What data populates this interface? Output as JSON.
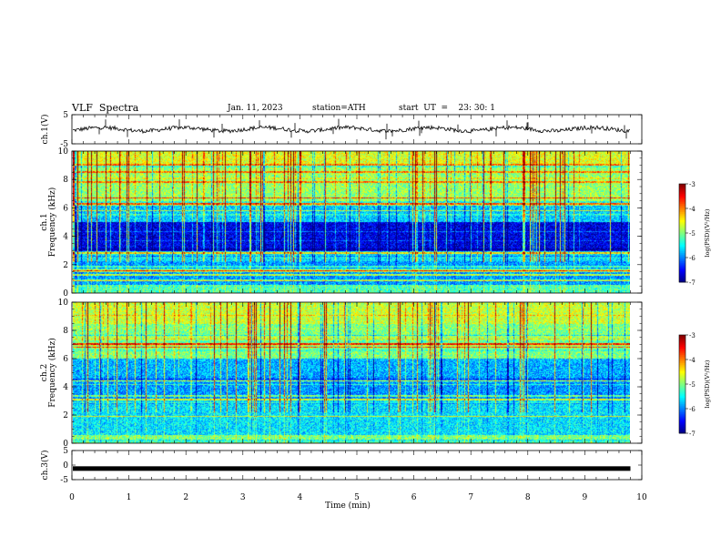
{
  "header": {
    "title": "VLF  Spectra",
    "date": "Jan. 11, 2023",
    "station": "station=ATH",
    "start": "start  UT  =    23: 30: 1"
  },
  "chart_data": [
    {
      "type": "line",
      "name": "ch1-waveform",
      "ylabel": "ch.1(V)",
      "ylim": [
        -5,
        5
      ],
      "yticks": [
        "5",
        "-5"
      ],
      "xlim": [
        0,
        10
      ],
      "baseline": 0
    },
    {
      "type": "heatmap",
      "name": "ch1-spectrogram",
      "ylabel": "ch.1\nFrequency  (kHz)",
      "ylabel_lines": [
        "ch.1",
        "Frequency  (kHz)"
      ],
      "ylim": [
        0,
        10
      ],
      "yticks": [
        "0",
        "2",
        "4",
        "6",
        "8",
        "10"
      ],
      "xlim": [
        0,
        10
      ],
      "data_end_min": 9.8,
      "colorbar": {
        "label": "log(PSD)(V²/Hz)",
        "range": [
          -7,
          -3
        ],
        "ticks": [
          "-3",
          "-4",
          "-5",
          "-6",
          "-7"
        ]
      }
    },
    {
      "type": "heatmap",
      "name": "ch2-spectrogram",
      "ylabel": "ch.2\nFrequency  (kHz)",
      "ylabel_lines": [
        "ch.2",
        "Frequency  (kHz)"
      ],
      "ylim": [
        0,
        10
      ],
      "yticks": [
        "0",
        "2",
        "4",
        "6",
        "8",
        "10"
      ],
      "xlim": [
        0,
        10
      ],
      "data_end_min": 9.8,
      "colorbar": {
        "label": "log(PSD)(V²/Hz)",
        "range": [
          -7,
          -3
        ],
        "ticks": [
          "-3",
          "-4",
          "-5",
          "-6",
          "-7"
        ]
      }
    },
    {
      "type": "line",
      "name": "ch3-waveform",
      "ylabel": "ch.3(V)",
      "ylim": [
        -5,
        5
      ],
      "yticks": [
        "5",
        "0",
        "-5"
      ],
      "xlim": [
        0,
        10
      ],
      "baseline": -1.2
    }
  ],
  "x_axis": {
    "label": "Time  (min)",
    "ticks": [
      "0",
      "1",
      "2",
      "3",
      "4",
      "5",
      "6",
      "7",
      "8",
      "9",
      "10"
    ]
  }
}
